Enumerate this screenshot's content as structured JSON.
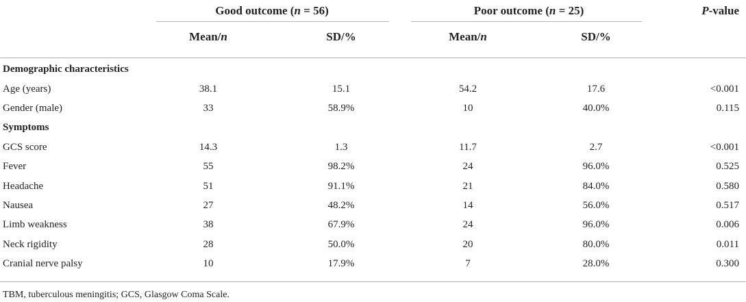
{
  "table": {
    "groups": [
      {
        "label_pre": "Good outcome (",
        "n_symbol": "n",
        "label_post": " = 56)"
      },
      {
        "label_pre": "Poor outcome (",
        "n_symbol": "n",
        "label_post": " = 25)"
      }
    ],
    "pvalue_header": {
      "p": "P",
      "rest": "-value"
    },
    "subheaders": [
      {
        "main": "Mean/",
        "ital": "n"
      },
      {
        "main": "SD/%",
        "ital": ""
      },
      {
        "main": "Mean/",
        "ital": "n"
      },
      {
        "main": "SD/%",
        "ital": ""
      }
    ],
    "rows": [
      {
        "kind": "section",
        "label": "Demographic characteristics"
      },
      {
        "kind": "data",
        "label": "Age (years)",
        "cells": [
          "38.1",
          "15.1",
          "54.2",
          "17.6"
        ],
        "p": "<0.001"
      },
      {
        "kind": "data",
        "label": "Gender (male)",
        "cells": [
          "33",
          "58.9%",
          "10",
          "40.0%"
        ],
        "p": "0.115"
      },
      {
        "kind": "section",
        "label": "Symptoms"
      },
      {
        "kind": "data",
        "label": "GCS score",
        "cells": [
          "14.3",
          "1.3",
          "11.7",
          "2.7"
        ],
        "p": "<0.001"
      },
      {
        "kind": "data",
        "label": "Fever",
        "cells": [
          "55",
          "98.2%",
          "24",
          "96.0%"
        ],
        "p": "0.525"
      },
      {
        "kind": "data",
        "label": "Headache",
        "cells": [
          "51",
          "91.1%",
          "21",
          "84.0%"
        ],
        "p": "0.580"
      },
      {
        "kind": "data",
        "label": "Nausea",
        "cells": [
          "27",
          "48.2%",
          "14",
          "56.0%"
        ],
        "p": "0.517"
      },
      {
        "kind": "data",
        "label": "Limb weakness",
        "cells": [
          "38",
          "67.9%",
          "24",
          "96.0%"
        ],
        "p": "0.006"
      },
      {
        "kind": "data",
        "label": "Neck rigidity",
        "cells": [
          "28",
          "50.0%",
          "20",
          "80.0%"
        ],
        "p": "0.011"
      },
      {
        "kind": "data",
        "label": "Cranial nerve palsy",
        "cells": [
          "10",
          "17.9%",
          "7",
          "28.0%"
        ],
        "p": "0.300"
      }
    ],
    "footnote": "TBM, tuberculous meningitis; GCS, Glasgow Coma Scale."
  }
}
